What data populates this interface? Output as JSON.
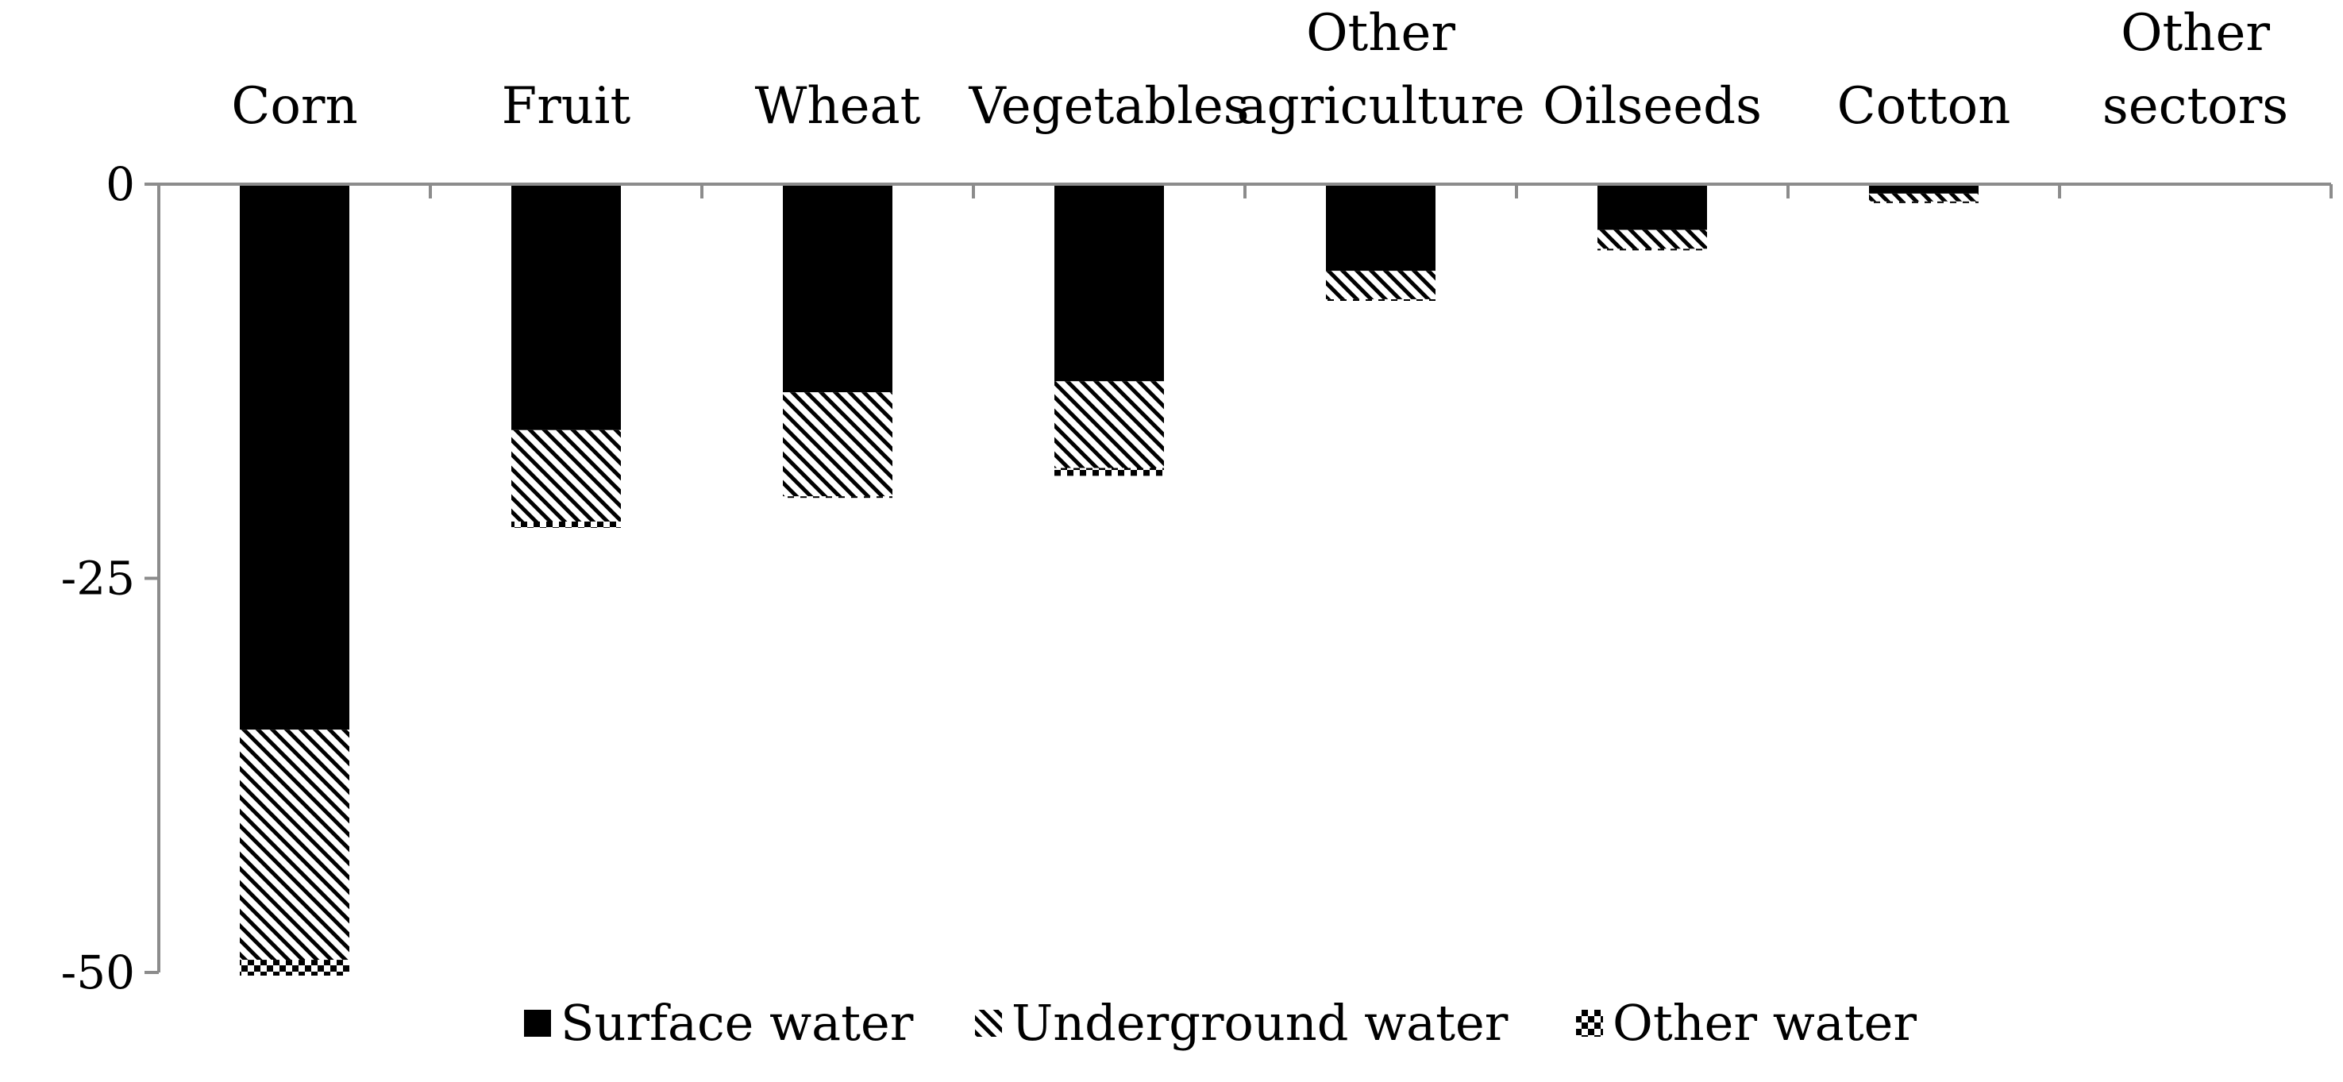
{
  "chart_data": {
    "type": "bar",
    "stacked": true,
    "title": "",
    "xlabel": "",
    "ylabel": "",
    "categories": [
      [
        "Corn"
      ],
      [
        "Fruit"
      ],
      [
        "Wheat"
      ],
      [
        "Vegetables"
      ],
      [
        "Other",
        "agriculture"
      ],
      [
        "Oilseeds"
      ],
      [
        "Cotton"
      ],
      [
        "Other",
        "sectors"
      ]
    ],
    "series": [
      {
        "name": "Surface water",
        "pattern": "solid",
        "values": [
          -34.6,
          -15.6,
          -13.2,
          -12.5,
          -5.5,
          -2.9,
          -0.6,
          0
        ]
      },
      {
        "name": "Underground water",
        "pattern": "diagonal-hatch",
        "values": [
          -14.6,
          -5.8,
          -6.6,
          -5.5,
          -1.8,
          -1.2,
          -0.5,
          0
        ]
      },
      {
        "name": "Other water",
        "pattern": "checker",
        "values": [
          -1.0,
          -0.4,
          -0.1,
          -0.5,
          -0.1,
          -0.1,
          -0.1,
          0
        ]
      }
    ],
    "ylim": [
      -50,
      0
    ],
    "yticks": [
      "0",
      "-25",
      "-50"
    ],
    "ytick_values": [
      0,
      -25,
      -50
    ],
    "grid": false,
    "legend_position": "bottom",
    "colors": {
      "ink": "#000000",
      "axis": "#8c8c8c",
      "background": "#ffffff"
    }
  }
}
